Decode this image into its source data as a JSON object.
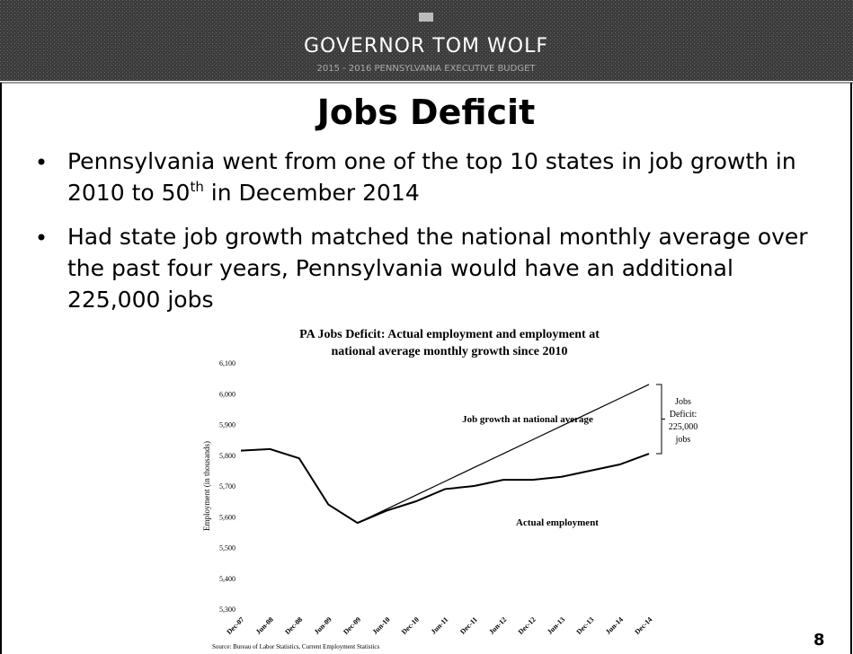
{
  "header": {
    "title": "GOVERNOR TOM WOLF",
    "subtitle": "2015 - 2016 PENNSYLVANIA EXECUTIVE BUDGET"
  },
  "title": "Jobs Deficit",
  "bullets": [
    [
      [
        {
          "text": "Pennsylvania went from one of the top 10 states in job growth in"
        }
      ],
      [
        {
          "text": "2010 to 50"
        },
        {
          "text": "th",
          "sup": true
        },
        {
          "text": " in December 2014"
        }
      ]
    ],
    [
      [
        {
          "text": "Had state job growth matched the national monthly average over"
        }
      ],
      [
        {
          "text": "the past four years, Pennsylvania would have an additional"
        }
      ],
      [
        {
          "text": "225,000 jobs"
        }
      ]
    ]
  ],
  "chart_data": {
    "type": "line",
    "title": [
      "PA Jobs Deficit: Actual employment and employment at",
      "national average monthly growth since 2010"
    ],
    "y_label": "Employment (in thousands)",
    "categories": [
      "Dec-07",
      "Jun-08",
      "Dec-08",
      "Jun-09",
      "Dec-09",
      "Jun-10",
      "Dec-10",
      "Jun-11",
      "Dec-11",
      "Jun-12",
      "Dec-12",
      "Jun-13",
      "Dec-13",
      "Jun-14",
      "Dec-14"
    ],
    "series": [
      {
        "name": "Actual employment",
        "color": "#000000",
        "values": [
          5815,
          5820,
          5790,
          5640,
          5580,
          5620,
          5650,
          5690,
          5700,
          5720,
          5720,
          5730,
          5750,
          5770,
          5805
        ]
      },
      {
        "name": "Job growth at national average",
        "color": "#000000",
        "values": [
          null,
          null,
          null,
          null,
          5580,
          5625,
          5670,
          5715,
          5760,
          5805,
          5850,
          5895,
          5940,
          5985,
          6030
        ]
      }
    ],
    "ylim": [
      5300,
      6100
    ],
    "yticks": [
      {
        "value": 5300,
        "label": "5,300"
      },
      {
        "value": 5400,
        "label": "5,400"
      },
      {
        "value": 5500,
        "label": "5,500"
      },
      {
        "value": 5600,
        "label": "5,600"
      },
      {
        "value": 5700,
        "label": "5,700"
      },
      {
        "value": 5800,
        "label": "5,800"
      },
      {
        "value": 5900,
        "label": "5,900"
      },
      {
        "value": 6000,
        "label": "6,000"
      },
      {
        "value": 6100,
        "label": "6,100"
      }
    ],
    "deficit_label": [
      "Jobs",
      "Deficit:",
      "225,000",
      "jobs"
    ],
    "source": "Source: Bureau of Labor Statistics, Current Employment Statistics"
  },
  "page_number": "8"
}
